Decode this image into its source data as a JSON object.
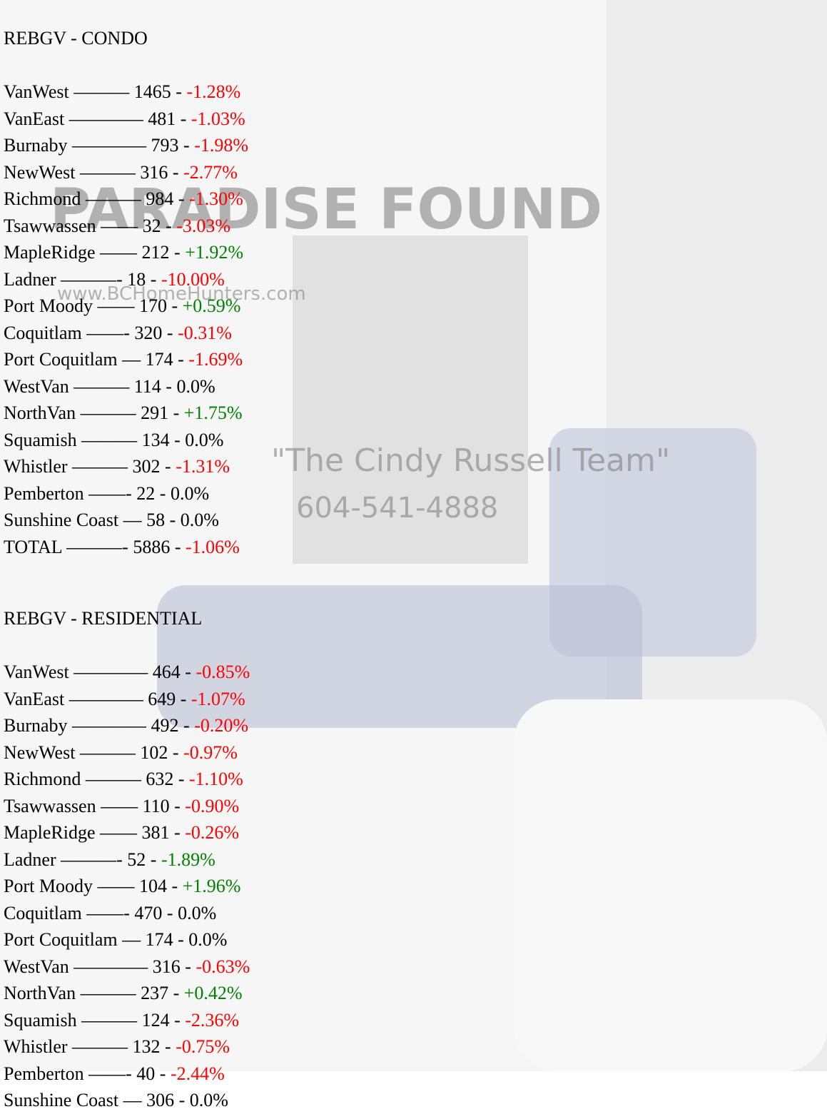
{
  "sections": [
    {
      "heading": "REBGV - CONDO",
      "rows": [
        {
          "label": "VanWest ——— 1465 - ",
          "change": "-1.28%",
          "color": "#ff0000"
        },
        {
          "label": "VanEast ———— 481 - ",
          "change": "-1.03%",
          "color": "#ff0000"
        },
        {
          "label": "Burnaby ———— 793 - ",
          "change": "-1.98%",
          "color": "#ff0000"
        },
        {
          "label": "NewWest ——— 316 - ",
          "change": "-2.77%",
          "color": "#ff0000"
        },
        {
          "label": "Richmond ——— 984 - ",
          "change": "-1.30%",
          "color": "#ff0000"
        },
        {
          "label": "Tsawwassen —— 32 - ",
          "change": "-3.03%",
          "color": "#ff0000"
        },
        {
          "label": "MapleRidge —— 212 - ",
          "change": "+1.92%",
          "color": "#008000"
        },
        {
          "label": "Ladner ———- 18 - ",
          "change": "-10.00%",
          "color": "#ff0000"
        },
        {
          "label": "Port Moody —— 170 - ",
          "change": "+0.59%",
          "color": "#008000"
        },
        {
          "label": "Coquitlam ——- 320 - ",
          "change": "-0.31%",
          "color": "#ff0000"
        },
        {
          "label": "Port Coquitlam — 174 - ",
          "change": "-1.69%",
          "color": "#ff0000"
        },
        {
          "label": "WestVan ——— 114 - ",
          "change": "0.0%",
          "color": "#000000"
        },
        {
          "label": "NorthVan ——— 291 - ",
          "change": "+1.75%",
          "color": "#008000"
        },
        {
          "label": "Squamish ——— 134 - ",
          "change": "0.0%",
          "color": "#000000"
        },
        {
          "label": "Whistler ——— 302 - ",
          "change": "-1.31%",
          "color": "#ff0000"
        },
        {
          "label": "Pemberton ——- 22 - ",
          "change": "0.0%",
          "color": "#000000"
        },
        {
          "label": "Sunshine Coast — 58 - ",
          "change": "0.0%",
          "color": "#000000"
        },
        {
          "label": "TOTAL ———- 5886 - ",
          "change": "-1.06%",
          "color": "#ff0000"
        }
      ]
    },
    {
      "heading": "REBGV - RESIDENTIAL",
      "rows": [
        {
          "label": "VanWest ———— 464 - ",
          "change": "-0.85%",
          "color": "#ff0000"
        },
        {
          "label": "VanEast ———— 649 - ",
          "change": "-1.07%",
          "color": "#ff0000"
        },
        {
          "label": "Burnaby ———— 492 - ",
          "change": "-0.20%",
          "color": "#ff0000"
        },
        {
          "label": "NewWest ——— 102 - ",
          "change": "-0.97%",
          "color": "#ff0000"
        },
        {
          "label": "Richmond ——— 632 - ",
          "change": "-1.10%",
          "color": "#ff0000"
        },
        {
          "label": "Tsawwassen —— 110 - ",
          "change": "-0.90%",
          "color": "#ff0000"
        },
        {
          "label": "MapleRidge —— 381 - ",
          "change": "-0.26%",
          "color": "#ff0000"
        },
        {
          "label": "Ladner ———- 52 - ",
          "change": "-1.89%",
          "color": "#008000"
        },
        {
          "label": "Port Moody —— 104 - ",
          "change": "+1.96%",
          "color": "#008000"
        },
        {
          "label": "Coquitlam ——- 470 - ",
          "change": "0.0%",
          "color": "#000000"
        },
        {
          "label": "Port Coquitlam — 174 - ",
          "change": "0.0%",
          "color": "#000000"
        },
        {
          "label": "WestVan ———— 316 - ",
          "change": "-0.63%",
          "color": "#ff0000"
        },
        {
          "label": "NorthVan ——— 237 - ",
          "change": "+0.42%",
          "color": "#008000"
        },
        {
          "label": "Squamish ——— 124 - ",
          "change": "-2.36%",
          "color": "#ff0000"
        },
        {
          "label": "Whistler ——— 132 - ",
          "change": "-0.75%",
          "color": "#ff0000"
        },
        {
          "label": "Pemberton ——- 40 - ",
          "change": "-2.44%",
          "color": "#ff0000"
        },
        {
          "label": "Sunshine Coast — 306 - ",
          "change": "0.0%",
          "color": "#000000"
        }
      ]
    }
  ],
  "background": {
    "brand": "PARADISE FOUND",
    "website": "www.BCHomeHunters.com",
    "team": "\"The Cindy Russell Team\"",
    "phone": "604-541-4888"
  }
}
